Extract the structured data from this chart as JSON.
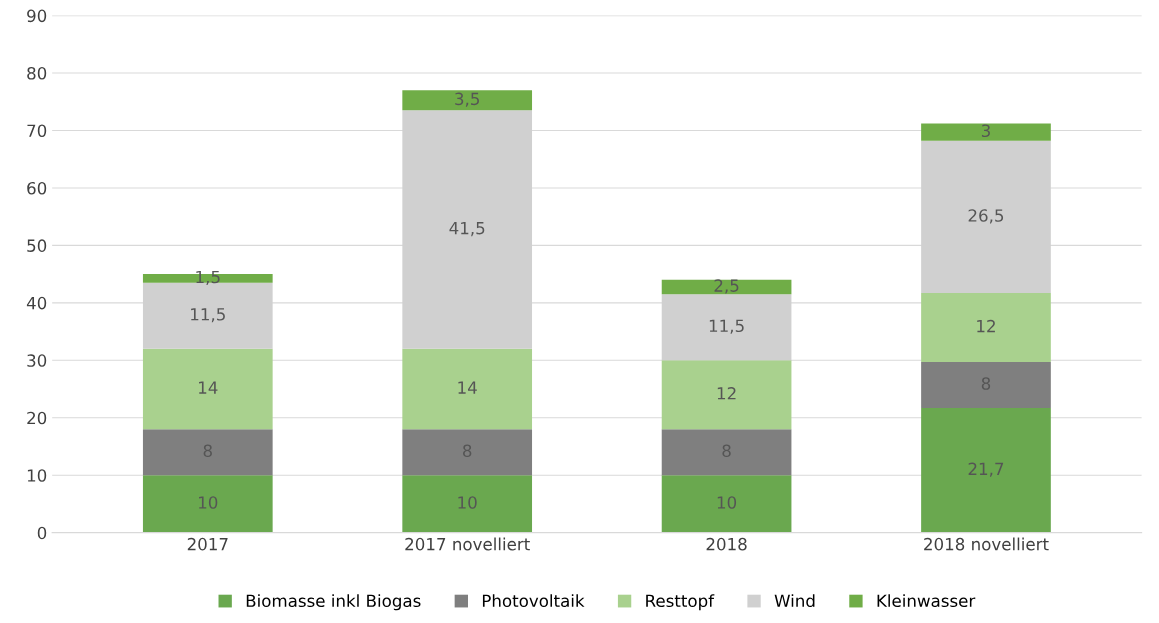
{
  "chart_data": {
    "type": "bar",
    "stacked": true,
    "categories": [
      "2017",
      "2017 novelliert",
      "2018",
      "2018 novelliert"
    ],
    "series": [
      {
        "name": "Biomasse inkl Biogas",
        "color": "#6aa84f",
        "values": [
          10,
          10,
          10,
          21.7
        ],
        "value_labels": [
          "10",
          "10",
          "10",
          "21,7"
        ]
      },
      {
        "name": "Photovoltaik",
        "color": "#7f7f7f",
        "values": [
          8,
          8,
          8,
          8
        ],
        "value_labels": [
          "8",
          "8",
          "8",
          "8"
        ]
      },
      {
        "name": "Resttopf",
        "color": "#a9d18e",
        "values": [
          14,
          14,
          12,
          12
        ],
        "value_labels": [
          "14",
          "14",
          "12",
          "12"
        ]
      },
      {
        "name": "Wind",
        "color": "#d0d0d0",
        "values": [
          11.5,
          41.5,
          11.5,
          26.5
        ],
        "value_labels": [
          "11,5",
          "41,5",
          "11,5",
          "26,5"
        ]
      },
      {
        "name": "Kleinwasser",
        "color": "#70ad47",
        "values": [
          1.5,
          3.5,
          2.5,
          3
        ],
        "value_labels": [
          "1,5",
          "3,5",
          "2,5",
          "3"
        ]
      }
    ],
    "ylim": [
      0,
      90
    ],
    "yticks": [
      0,
      10,
      20,
      30,
      40,
      50,
      60,
      70,
      80,
      90
    ],
    "grid": "y",
    "legend": "bottom"
  }
}
